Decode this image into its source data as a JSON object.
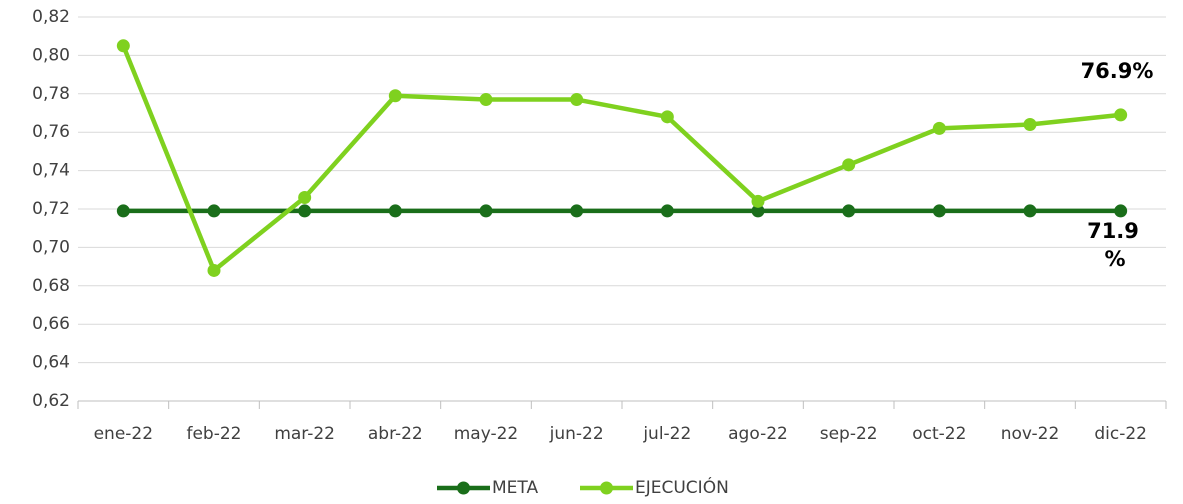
{
  "chart_data": {
    "type": "line",
    "categories": [
      "ene-22",
      "feb-22",
      "mar-22",
      "abr-22",
      "may-22",
      "jun-22",
      "jul-22",
      "ago-22",
      "sep-22",
      "oct-22",
      "nov-22",
      "dic-22"
    ],
    "series": [
      {
        "name": "META",
        "color": "#1a6e1a",
        "values": [
          0.719,
          0.719,
          0.719,
          0.719,
          0.719,
          0.719,
          0.719,
          0.719,
          0.719,
          0.719,
          0.719,
          0.719
        ],
        "value_labels": [
          null,
          null,
          null,
          null,
          null,
          null,
          null,
          null,
          null,
          null,
          null,
          "71.9%"
        ]
      },
      {
        "name": "EJECUCIÓN",
        "color": "#7fd11f",
        "values": [
          0.805,
          0.688,
          0.726,
          0.779,
          0.777,
          0.777,
          0.768,
          0.724,
          0.743,
          0.762,
          0.764,
          0.769
        ],
        "value_labels": [
          null,
          null,
          null,
          null,
          null,
          null,
          null,
          null,
          null,
          null,
          null,
          "76.9%"
        ]
      }
    ],
    "ylim": [
      0.62,
      0.82
    ],
    "yticks": [
      {
        "value": 0.62,
        "label": "0,62"
      },
      {
        "value": 0.64,
        "label": "0,64"
      },
      {
        "value": 0.66,
        "label": "0,66"
      },
      {
        "value": 0.68,
        "label": "0,68"
      },
      {
        "value": 0.7,
        "label": "0,70"
      },
      {
        "value": 0.72,
        "label": "0,72"
      },
      {
        "value": 0.74,
        "label": "0,74"
      },
      {
        "value": 0.76,
        "label": "0,76"
      },
      {
        "value": 0.78,
        "label": "0,78"
      },
      {
        "value": 0.8,
        "label": "0,80"
      },
      {
        "value": 0.82,
        "label": "0,82"
      }
    ],
    "grid": true,
    "legend": "bottom"
  }
}
